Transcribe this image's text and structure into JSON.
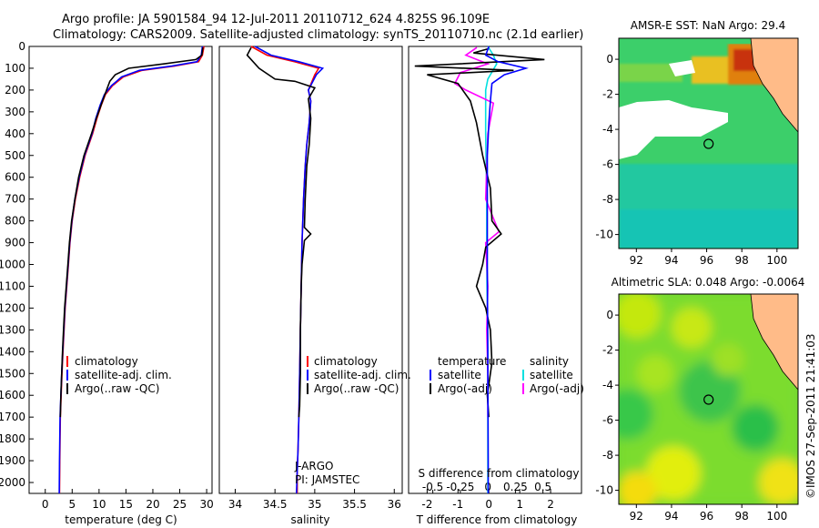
{
  "header": {
    "line1": "Argo profile: JA 5901584_94 12-Jul-2011 20110712_624 4.825S 96.109E",
    "line2": "Climatology: CARS2009. Satellite-adjusted climatology: synTS_20110710.nc (2.1d earlier)"
  },
  "footer": {
    "agency": "J-ARGO",
    "pi": "PI: JAMSTEC",
    "stamp": "©IMOS 27-Sep-2011 21:41:03"
  },
  "colors": {
    "climatology": "#ff0000",
    "satellite": "#0000ff",
    "argo": "#000000",
    "sal_satellite": "#00e0e0",
    "sal_argo": "#ff00ff",
    "land": "#ffbb88"
  },
  "chart_data": [
    {
      "type": "line",
      "xlabel": "temperature (deg C)",
      "ylabel": "",
      "xlim": [
        -3,
        31
      ],
      "ylim": [
        2050,
        0
      ],
      "xticks": [
        "0",
        "5",
        "10",
        "15",
        "20",
        "25",
        "30"
      ],
      "yticks": [
        "0",
        "100",
        "200",
        "300",
        "400",
        "500",
        "600",
        "700",
        "800",
        "900",
        "1000",
        "1100",
        "1200",
        "1300",
        "1400",
        "1500",
        "1600",
        "1700",
        "1800",
        "1900",
        "2000"
      ],
      "legend": [
        "climatology",
        "satellite-adj. clim.",
        "Argo(..raw -QC)"
      ],
      "series": [
        {
          "name": "climatology",
          "x": [
            29.5,
            29.2,
            28.5,
            24,
            18,
            14.5,
            12.5,
            11.2,
            10.4,
            9.6,
            8.8,
            7.4,
            6.4,
            5.6,
            5.0,
            4.6,
            4.3,
            4.0,
            3.7,
            3.5,
            3.3,
            3.1,
            2.95,
            2.8,
            2.7,
            2.65
          ],
          "y": [
            0,
            40,
            70,
            90,
            110,
            140,
            180,
            220,
            270,
            330,
            400,
            500,
            600,
            700,
            800,
            900,
            1000,
            1100,
            1200,
            1300,
            1400,
            1500,
            1600,
            1700,
            1900,
            2050
          ]
        },
        {
          "name": "satellite-adj. clim.",
          "x": [
            29.2,
            29.0,
            28.2,
            23.5,
            17.5,
            14.2,
            12.3,
            11.0,
            10.2,
            9.4,
            8.7,
            7.3,
            6.3,
            5.5,
            4.95,
            4.55,
            4.25,
            3.95,
            3.65,
            3.45,
            3.25,
            3.05,
            2.9,
            2.75,
            2.65,
            2.6
          ],
          "y": [
            0,
            40,
            70,
            90,
            110,
            140,
            180,
            220,
            270,
            330,
            400,
            500,
            600,
            700,
            800,
            900,
            1000,
            1100,
            1200,
            1300,
            1400,
            1500,
            1600,
            1700,
            1900,
            2050
          ]
        },
        {
          "name": "Argo(..raw -QC)",
          "x": [
            29.3,
            29.1,
            28.0,
            22,
            15.5,
            13.0,
            12.0,
            11.4,
            10.5,
            9.5,
            8.6,
            7.2,
            6.2,
            5.5,
            4.9,
            4.5,
            4.2,
            3.9,
            3.6,
            3.4,
            3.2,
            3.05,
            2.9,
            2.8
          ],
          "y": [
            5,
            40,
            60,
            80,
            100,
            130,
            160,
            200,
            260,
            330,
            400,
            500,
            600,
            700,
            800,
            900,
            1000,
            1100,
            1200,
            1300,
            1400,
            1500,
            1600,
            1700
          ]
        }
      ]
    },
    {
      "type": "line",
      "xlabel": "salinity",
      "xlim": [
        33.8,
        36.1
      ],
      "ylim": [
        2050,
        0
      ],
      "xticks": [
        "34",
        "34.5",
        "35",
        "35.5",
        "36"
      ],
      "legend": [
        "climatology",
        "satellite-adj. clim.",
        "Argo(..raw -QC)"
      ],
      "series": [
        {
          "name": "climatology",
          "x": [
            34.2,
            34.4,
            34.75,
            35.05,
            35.0,
            34.92,
            34.95,
            34.93,
            34.9,
            34.88,
            34.86,
            34.84,
            34.83,
            34.82,
            34.81,
            34.8,
            34.79,
            34.78,
            34.78
          ],
          "y": [
            0,
            40,
            70,
            100,
            130,
            200,
            250,
            350,
            450,
            550,
            700,
            900,
            1100,
            1300,
            1500,
            1700,
            1850,
            1950,
            2050
          ]
        },
        {
          "name": "satellite-adj. clim.",
          "x": [
            34.25,
            34.45,
            34.8,
            35.1,
            35.02,
            34.92,
            34.95,
            34.93,
            34.9,
            34.88,
            34.86,
            34.84,
            34.83,
            34.82,
            34.81,
            34.8,
            34.79,
            34.78,
            34.77
          ],
          "y": [
            0,
            40,
            70,
            100,
            130,
            200,
            250,
            350,
            450,
            550,
            700,
            900,
            1100,
            1300,
            1500,
            1700,
            1850,
            1950,
            2050
          ]
        },
        {
          "name": "Argo(..raw -QC)",
          "x": [
            34.2,
            34.15,
            34.3,
            34.5,
            34.75,
            35.0,
            34.92,
            34.95,
            34.93,
            34.9,
            34.88,
            34.87,
            34.95,
            34.87,
            34.84,
            34.83,
            34.82,
            34.82,
            34.81,
            34.8
          ],
          "y": [
            5,
            40,
            100,
            150,
            160,
            190,
            240,
            330,
            450,
            550,
            700,
            830,
            860,
            890,
            1000,
            1100,
            1300,
            1500,
            1650,
            1700
          ]
        }
      ]
    },
    {
      "type": "line",
      "xlabel": "T difference from climatology",
      "x2label": "S difference from climatology",
      "xlim": [
        -2.6,
        3.0
      ],
      "x2lim": [
        -0.72,
        0.85
      ],
      "ylim": [
        2050,
        0
      ],
      "xticks": [
        "-2",
        "-1",
        "0",
        "1",
        "2"
      ],
      "x2ticks": [
        "-0.5",
        "-0.25",
        "0",
        "0.25",
        "0.5"
      ],
      "legend_groups": [
        {
          "title": "temperature",
          "items": [
            "satellite",
            "Argo(-adj)"
          ]
        },
        {
          "title": "salinity",
          "items": [
            "satellite",
            "Argo(-adj)"
          ]
        }
      ],
      "series": [
        {
          "name": "satellite",
          "group": "temperature",
          "x": [
            0,
            -0.1,
            0.3,
            1.2,
            0.5,
            0.1,
            0.05,
            0,
            -0.05,
            -0.05,
            -0.05,
            -0.04,
            -0.03,
            -0.02,
            -0.02
          ],
          "y": [
            0,
            40,
            70,
            100,
            130,
            170,
            250,
            350,
            500,
            700,
            1000,
            1300,
            1600,
            1900,
            2050
          ]
        },
        {
          "name": "Argo(-adj)",
          "group": "temperature",
          "x": [
            0,
            -0.5,
            1.8,
            -2.4,
            0.8,
            -2.0,
            -1.0,
            -0.6,
            -0.4,
            -0.2,
            0.05,
            0.1,
            0.4,
            -0.1,
            -0.2,
            -0.4,
            -0.1,
            0.05,
            0.1,
            -0.05,
            0
          ],
          "y": [
            10,
            30,
            60,
            90,
            110,
            130,
            170,
            250,
            350,
            500,
            650,
            800,
            860,
            920,
            1000,
            1100,
            1200,
            1300,
            1450,
            1600,
            1700
          ]
        },
        {
          "name": "satellite",
          "group": "salinity",
          "x": [
            0,
            0.05,
            0.08,
            0.0,
            -0.02,
            -0.02,
            -0.01,
            -0.01,
            0,
            0,
            0
          ],
          "y": [
            0,
            40,
            80,
            150,
            200,
            400,
            700,
            1000,
            1400,
            1800,
            2050
          ]
        },
        {
          "name": "Argo(-adj)",
          "group": "salinity",
          "x": [
            -0.1,
            -0.2,
            0.0,
            -0.25,
            -0.3,
            -0.2,
            0.05,
            0.0,
            -0.02,
            0.1,
            -0.02,
            0.0,
            -0.01,
            0.0,
            0.0
          ],
          "y": [
            5,
            40,
            80,
            120,
            170,
            200,
            260,
            400,
            700,
            850,
            900,
            1100,
            1300,
            1500,
            1700
          ]
        }
      ]
    },
    {
      "type": "heatmap",
      "title": "AMSR-E SST: NaN Argo: 29.4",
      "xticks": [
        "92",
        "94",
        "96",
        "98",
        "100"
      ],
      "yticks": [
        "0",
        "-2",
        "-4",
        "-6",
        "-8",
        "-10"
      ],
      "xlim": [
        91,
        101.2
      ],
      "ylim": [
        -10.8,
        1.2
      ],
      "marker": {
        "lon": 96.109,
        "lat": -4.825
      }
    },
    {
      "type": "heatmap",
      "title": "Altimetric SLA: 0.048 Argo: -0.0064",
      "xticks": [
        "92",
        "94",
        "96",
        "98",
        "100"
      ],
      "yticks": [
        "0",
        "-2",
        "-4",
        "-6",
        "-8",
        "-10"
      ],
      "xlim": [
        91,
        101.2
      ],
      "ylim": [
        -10.8,
        1.2
      ],
      "marker": {
        "lon": 96.109,
        "lat": -4.825
      }
    }
  ]
}
